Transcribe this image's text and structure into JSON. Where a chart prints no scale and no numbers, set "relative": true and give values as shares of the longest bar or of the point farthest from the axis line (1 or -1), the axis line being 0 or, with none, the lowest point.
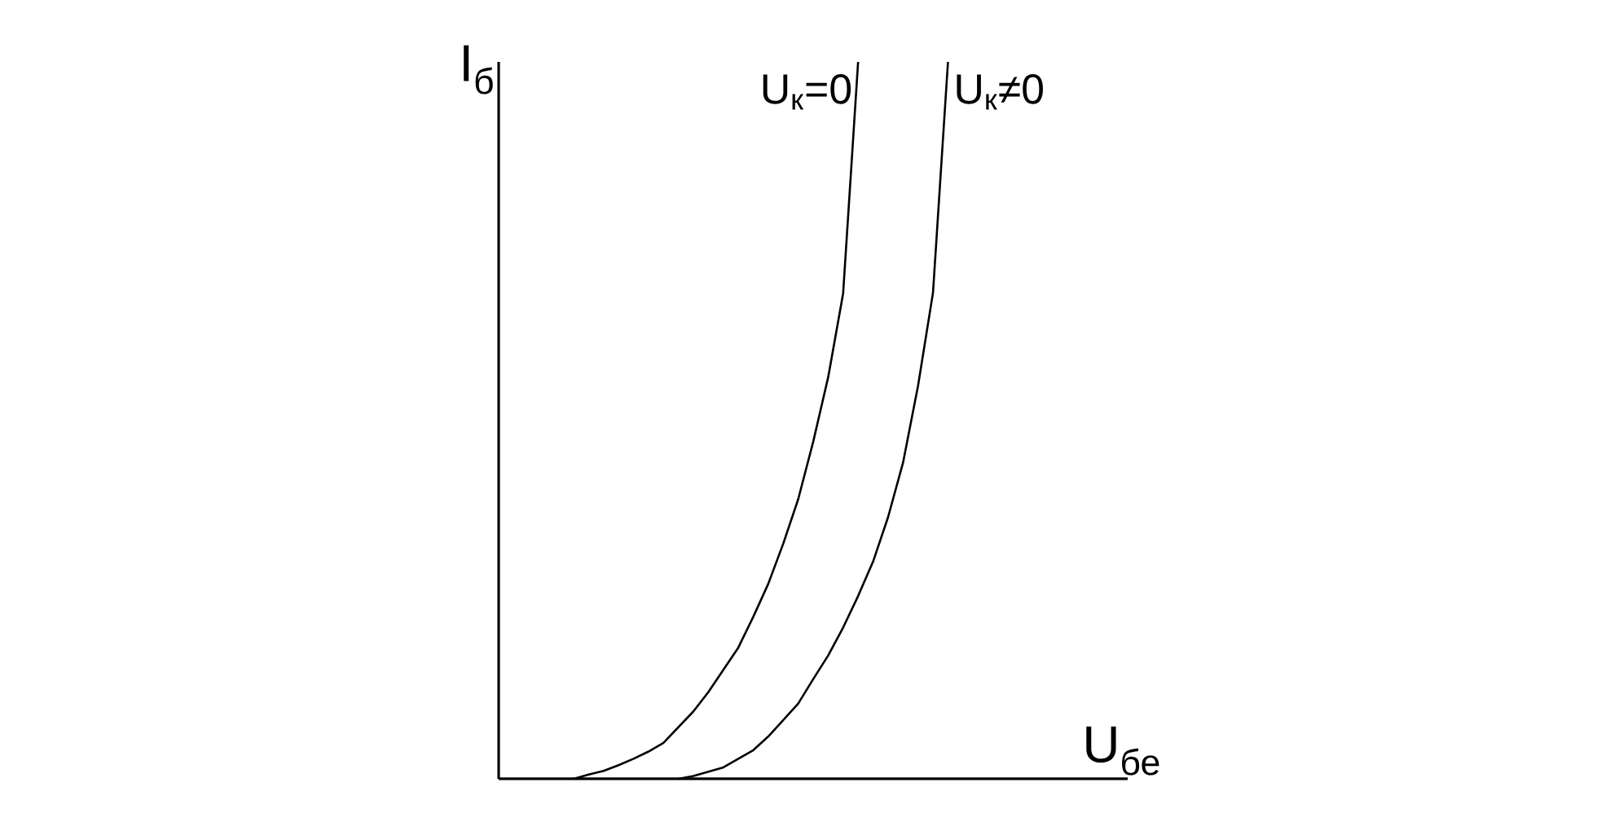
{
  "chart_data": {
    "type": "line",
    "relative": true,
    "xlabel": "U$_{бе}$",
    "ylabel": "I$_{б}$",
    "legend": false,
    "categories": [
      null,
      null,
      null,
      null,
      null,
      null,
      null,
      null,
      null,
      null,
      null,
      null,
      null,
      null,
      null,
      null,
      null,
      null,
      null,
      null,
      null,
      null,
      null,
      null,
      null,
      null,
      null,
      null,
      null,
      null,
      null,
      null,
      null,
      null,
      null,
      null,
      null,
      null,
      null,
      null,
      null,
      null,
      null
    ],
    "series": [
      {
        "name": "U$_{к}$=0",
        "color": "#000000",
        "values": [
          null,
          null,
          null,
          null,
          null,
          0,
          0.006,
          0.011,
          0.019,
          0.028,
          0.038,
          0.05,
          0.072,
          0.094,
          0.121,
          0.152,
          0.183,
          0.226,
          0.272,
          0.328,
          0.39,
          0.47,
          0.56,
          0.677,
          1,
          null,
          null,
          null,
          null,
          null,
          null,
          null,
          null,
          null,
          null,
          null,
          null,
          null,
          null,
          null,
          null,
          null,
          null
        ]
      },
      {
        "name": "U$_{к}$≠0",
        "color": "#000000",
        "values": [
          null,
          null,
          null,
          null,
          null,
          null,
          null,
          null,
          null,
          null,
          null,
          null,
          0,
          0.004,
          0.01,
          0.016,
          0.028,
          0.04,
          0.059,
          0.082,
          0.105,
          0.139,
          0.172,
          0.211,
          0.255,
          0.303,
          0.365,
          0.441,
          0.548,
          0.678,
          1,
          null,
          null,
          null,
          null,
          null,
          null,
          null,
          null,
          null,
          null,
          null,
          null
        ]
      }
    ]
  }
}
